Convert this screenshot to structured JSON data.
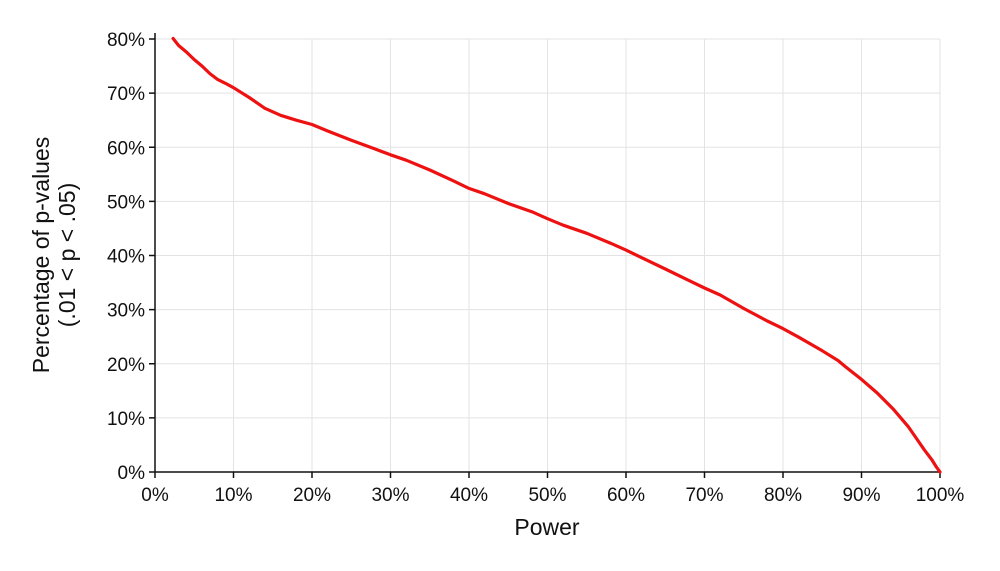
{
  "chart_data": {
    "type": "line",
    "title": "",
    "xlabel": "Power",
    "ylabel_lines": [
      "Percentage of p-values",
      "(.01 < p < .05)"
    ],
    "xlim": [
      0,
      100
    ],
    "ylim": [
      0,
      80
    ],
    "x_ticks": [
      0,
      10,
      20,
      30,
      40,
      50,
      60,
      70,
      80,
      90,
      100
    ],
    "y_ticks": [
      0,
      10,
      20,
      30,
      40,
      50,
      60,
      70,
      80
    ],
    "x_tick_labels": [
      "0%",
      "10%",
      "20%",
      "30%",
      "40%",
      "50%",
      "60%",
      "70%",
      "80%",
      "90%",
      "100%"
    ],
    "y_tick_labels": [
      "0%",
      "10%",
      "20%",
      "30%",
      "40%",
      "50%",
      "60%",
      "70%",
      "80%"
    ],
    "grid": true,
    "series": [
      {
        "color": "#ee1111",
        "x": [
          2.3,
          3,
          4,
          5,
          6,
          7,
          8,
          9,
          10,
          12,
          14,
          16,
          18,
          20,
          22,
          25,
          28,
          30,
          32,
          35,
          38,
          40,
          42,
          45,
          48,
          50,
          52,
          55,
          58,
          60,
          62,
          65,
          68,
          70,
          72,
          75,
          78,
          80,
          82,
          85,
          87,
          88,
          90,
          92,
          94,
          96,
          97,
          98,
          99,
          99.5,
          100
        ],
        "y": [
          80.1,
          78.8,
          77.6,
          76.2,
          75.0,
          73.6,
          72.5,
          71.8,
          71.0,
          69.2,
          67.2,
          65.9,
          65.0,
          64.2,
          63.0,
          61.3,
          59.7,
          58.6,
          57.6,
          55.8,
          53.8,
          52.4,
          51.4,
          49.6,
          48.1,
          46.8,
          45.6,
          44.1,
          42.3,
          41.0,
          39.6,
          37.5,
          35.4,
          34.0,
          32.7,
          30.2,
          27.9,
          26.5,
          24.9,
          22.4,
          20.6,
          19.4,
          17.1,
          14.6,
          11.7,
          8.3,
          6.2,
          4.1,
          2.2,
          1.0,
          0.0
        ]
      }
    ]
  }
}
